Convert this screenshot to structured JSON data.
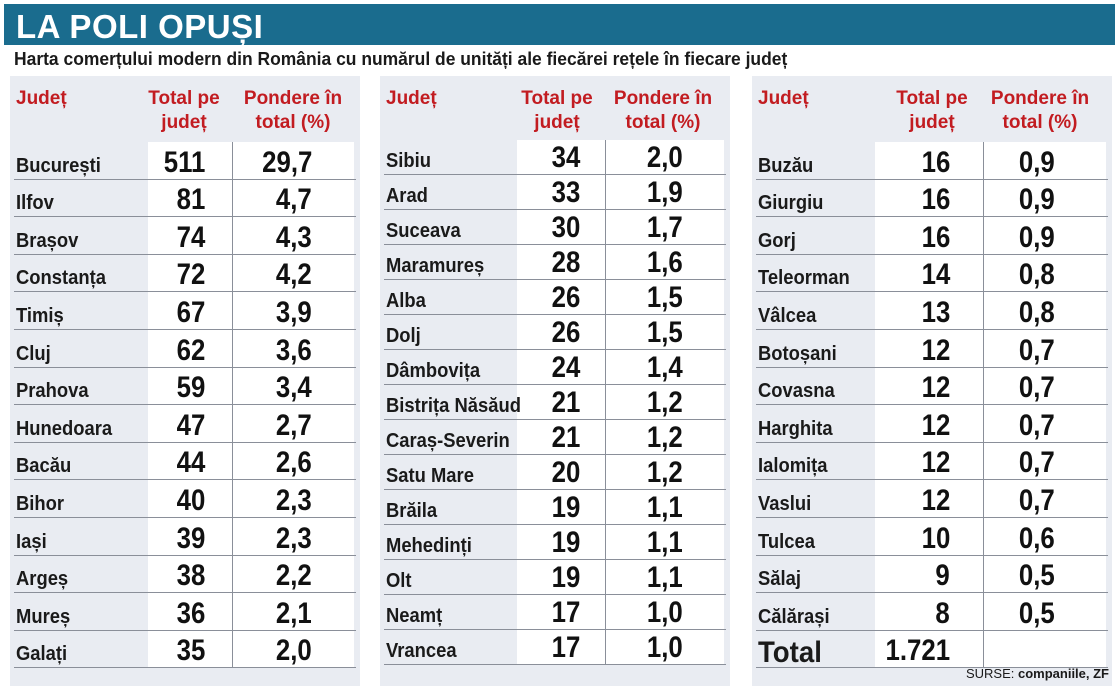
{
  "title": "LA POLI OPUȘI",
  "subtitle": "Harta comerțului modern din România cu numărul de unități ale fiecărei rețele în fiecare județ",
  "headers": {
    "county": "Județ",
    "total": "Total pe județ",
    "share": "Pondere în total (%)"
  },
  "columns": [
    {
      "rows": [
        {
          "county": "București",
          "total": "511",
          "share": "29,7"
        },
        {
          "county": "Ilfov",
          "total": "81",
          "share": "4,7"
        },
        {
          "county": "Brașov",
          "total": "74",
          "share": "4,3"
        },
        {
          "county": "Constanța",
          "total": "72",
          "share": "4,2"
        },
        {
          "county": "Timiș",
          "total": "67",
          "share": "3,9"
        },
        {
          "county": "Cluj",
          "total": "62",
          "share": "3,6"
        },
        {
          "county": "Prahova",
          "total": "59",
          "share": "3,4"
        },
        {
          "county": "Hunedoara",
          "total": "47",
          "share": "2,7"
        },
        {
          "county": "Bacău",
          "total": "44",
          "share": "2,6"
        },
        {
          "county": "Bihor",
          "total": "40",
          "share": "2,3"
        },
        {
          "county": "Iași",
          "total": "39",
          "share": "2,3"
        },
        {
          "county": "Argeș",
          "total": "38",
          "share": "2,2"
        },
        {
          "county": "Mureș",
          "total": "36",
          "share": "2,1"
        },
        {
          "county": "Galați",
          "total": "35",
          "share": "2,0"
        }
      ]
    },
    {
      "rows": [
        {
          "county": "Sibiu",
          "total": "34",
          "share": "2,0"
        },
        {
          "county": "Arad",
          "total": "33",
          "share": "1,9"
        },
        {
          "county": "Suceava",
          "total": "30",
          "share": "1,7"
        },
        {
          "county": "Maramureș",
          "total": "28",
          "share": "1,6"
        },
        {
          "county": "Alba",
          "total": "26",
          "share": "1,5"
        },
        {
          "county": "Dolj",
          "total": "26",
          "share": "1,5"
        },
        {
          "county": "Dâmbovița",
          "total": "24",
          "share": "1,4"
        },
        {
          "county": "Bistrița Năsăud",
          "total": "21",
          "share": "1,2"
        },
        {
          "county": "Caraș-Severin",
          "total": "21",
          "share": "1,2"
        },
        {
          "county": "Satu Mare",
          "total": "20",
          "share": "1,2"
        },
        {
          "county": "Brăila",
          "total": "19",
          "share": "1,1"
        },
        {
          "county": "Mehedinți",
          "total": "19",
          "share": "1,1"
        },
        {
          "county": "Olt",
          "total": "19",
          "share": "1,1"
        },
        {
          "county": "Neamț",
          "total": "17",
          "share": "1,0"
        },
        {
          "county": "Vrancea",
          "total": "17",
          "share": "1,0"
        }
      ]
    },
    {
      "rows": [
        {
          "county": "Buzău",
          "total": "16",
          "share": "0,9"
        },
        {
          "county": "Giurgiu",
          "total": "16",
          "share": "0,9"
        },
        {
          "county": "Gorj",
          "total": "16",
          "share": "0,9"
        },
        {
          "county": "Teleorman",
          "total": "14",
          "share": "0,8"
        },
        {
          "county": "Vâlcea",
          "total": "13",
          "share": "0,8"
        },
        {
          "county": "Botoșani",
          "total": "12",
          "share": "0,7"
        },
        {
          "county": "Covasna",
          "total": "12",
          "share": "0,7"
        },
        {
          "county": "Harghita",
          "total": "12",
          "share": "0,7"
        },
        {
          "county": "Ialomița",
          "total": "12",
          "share": "0,7"
        },
        {
          "county": "Vaslui",
          "total": "12",
          "share": "0,7"
        },
        {
          "county": "Tulcea",
          "total": "10",
          "share": "0,6"
        },
        {
          "county": "Sălaj",
          "total": "9",
          "share": "0,5"
        },
        {
          "county": "Călărași",
          "total": "8",
          "share": "0,5"
        }
      ],
      "total_row": {
        "label": "Total",
        "total": "1.721",
        "share": ""
      }
    }
  ],
  "source": {
    "label": "SURSE:",
    "text": "companiile, ZF"
  },
  "colors": {
    "title_bar": "#1a6c8e",
    "header_text": "#c21c21",
    "panel_bg": "#e9ecf2"
  }
}
